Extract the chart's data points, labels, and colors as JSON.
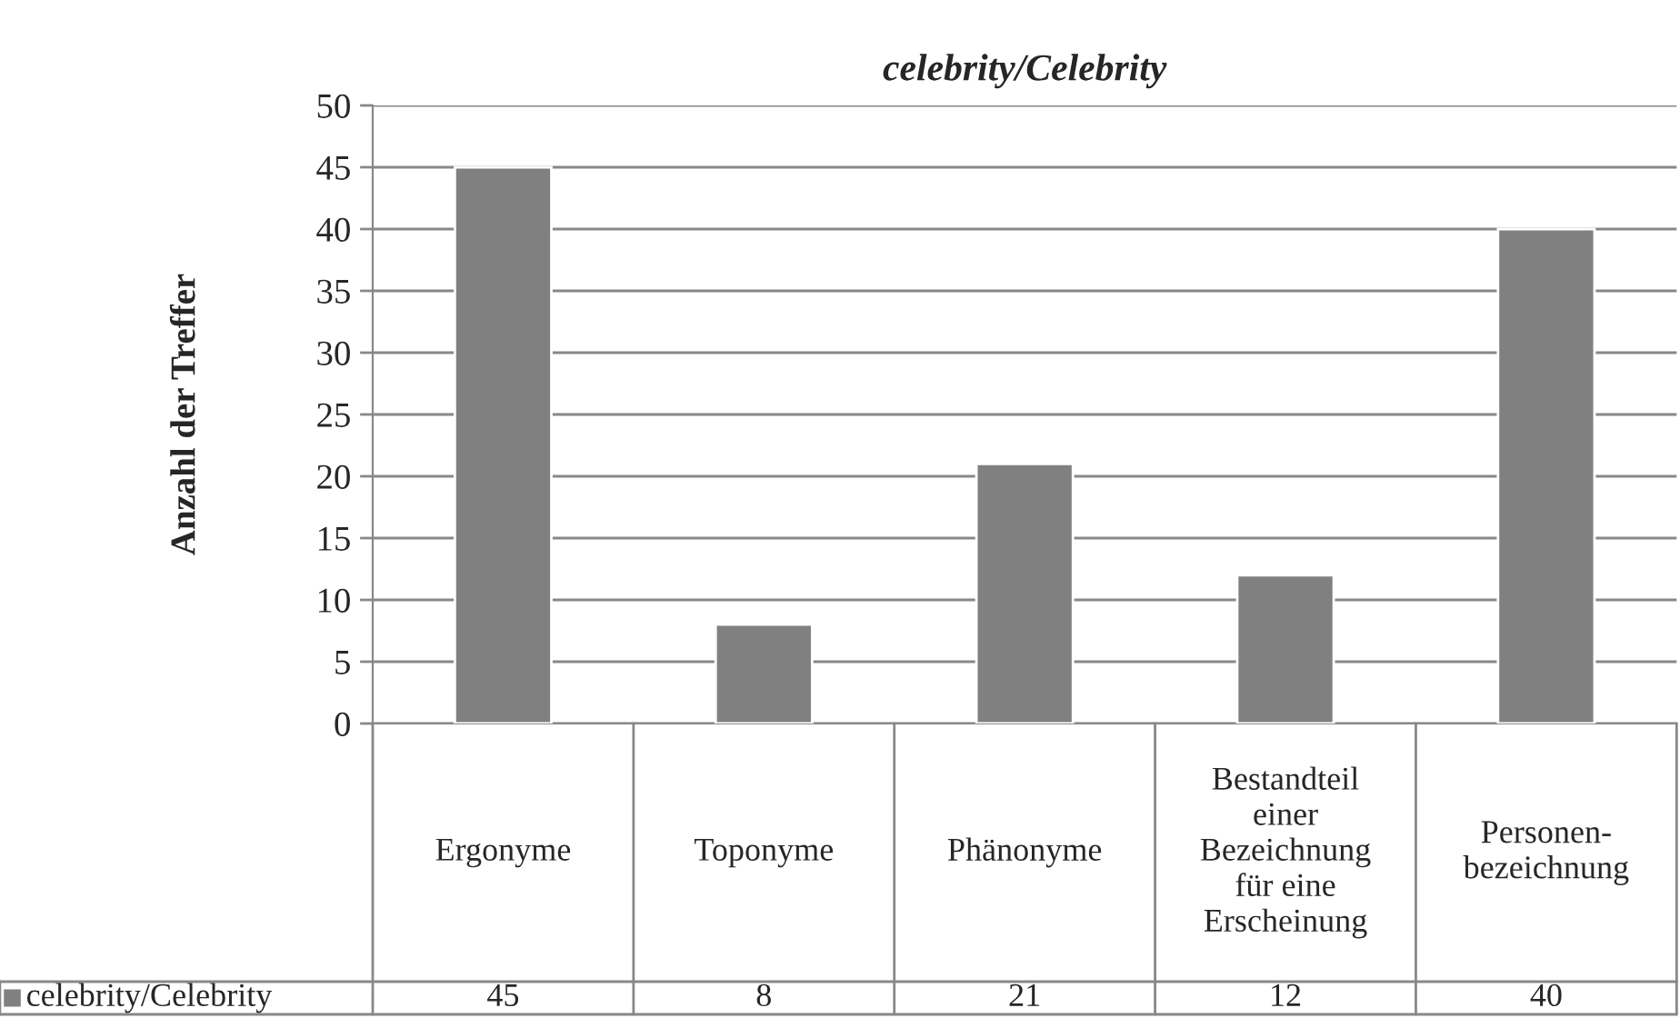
{
  "chart_data": {
    "type": "bar",
    "title": "celebrity/Celebrity",
    "ylabel": "Anzahl der Treffer",
    "categories": [
      "Ergonyme",
      "Toponyme",
      "Phänonyme",
      "Bestandteil\neiner\nBezeichnung\nfür eine\nErscheinung",
      "Personen-\nbezeichnung"
    ],
    "series": [
      {
        "name": "celebrity/Celebrity",
        "color": "#808080",
        "values": [
          45,
          8,
          21,
          12,
          40
        ]
      }
    ],
    "ylim": [
      0,
      50
    ],
    "yticks": [
      0,
      5,
      10,
      15,
      20,
      25,
      30,
      35,
      40,
      45,
      50
    ],
    "grid": "y",
    "legend": "bottom left",
    "data_labels": true
  }
}
